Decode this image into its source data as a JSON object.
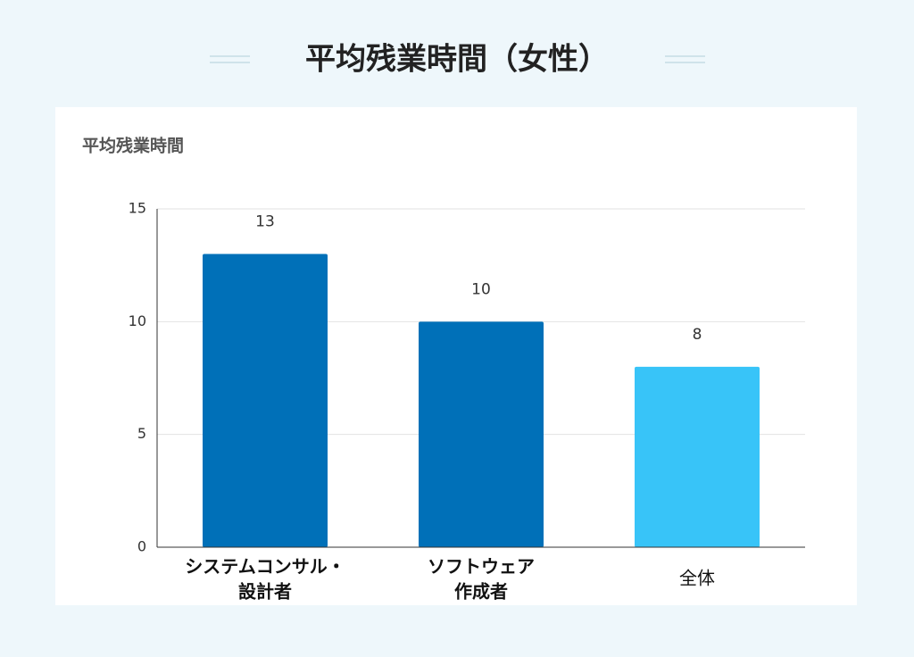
{
  "page_title": "平均残業時間（女性）",
  "chart_data": {
    "type": "bar",
    "title": "平均残業時間",
    "categories": [
      [
        "システムコンサル・",
        "設計者"
      ],
      [
        "ソフトウェア",
        "作成者"
      ],
      [
        "全体"
      ]
    ],
    "values": [
      13,
      10,
      8
    ],
    "colors": [
      "#0070b8",
      "#0070b8",
      "#38c4f8"
    ],
    "ylim": [
      0,
      15
    ],
    "yticks": [
      0,
      5,
      10,
      15
    ],
    "grid": true
  }
}
